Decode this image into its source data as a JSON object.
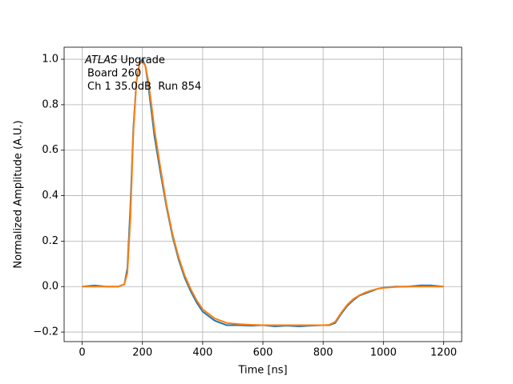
{
  "chart_data": {
    "type": "line",
    "xlabel": "Time [ns]",
    "ylabel": "Normalized Amplitude (A.U.)",
    "annotation_emph": "ATLAS",
    "annotation": [
      "Upgrade",
      "Board 260",
      "Ch 1 35.0dB  Run 854"
    ],
    "x": [
      0,
      40,
      80,
      120,
      140,
      150,
      160,
      170,
      180,
      190,
      200,
      210,
      220,
      230,
      240,
      260,
      280,
      300,
      320,
      340,
      360,
      380,
      400,
      440,
      480,
      520,
      560,
      600,
      640,
      680,
      720,
      760,
      800,
      820,
      840,
      860,
      880,
      900,
      920,
      940,
      960,
      980,
      1000,
      1040,
      1080,
      1120,
      1160,
      1200
    ],
    "series": [
      {
        "color": "#1f77b4",
        "values": [
          0.0,
          0.005,
          0.0,
          0.0,
          0.01,
          0.08,
          0.35,
          0.7,
          0.9,
          0.98,
          1.0,
          0.97,
          0.88,
          0.77,
          0.66,
          0.5,
          0.35,
          0.22,
          0.12,
          0.04,
          -0.02,
          -0.07,
          -0.11,
          -0.15,
          -0.17,
          -0.17,
          -0.172,
          -0.17,
          -0.175,
          -0.172,
          -0.175,
          -0.172,
          -0.17,
          -0.17,
          -0.16,
          -0.12,
          -0.085,
          -0.06,
          -0.04,
          -0.03,
          -0.02,
          -0.01,
          -0.005,
          0.0,
          0.0,
          0.005,
          0.005,
          0.0
        ]
      },
      {
        "color": "#ff7f0e",
        "values": [
          0.0,
          0.0,
          0.0,
          0.0,
          0.01,
          0.06,
          0.3,
          0.68,
          0.9,
          0.98,
          0.99,
          0.97,
          0.9,
          0.8,
          0.69,
          0.52,
          0.36,
          0.23,
          0.13,
          0.05,
          -0.01,
          -0.06,
          -0.1,
          -0.14,
          -0.16,
          -0.165,
          -0.168,
          -0.17,
          -0.17,
          -0.17,
          -0.17,
          -0.17,
          -0.17,
          -0.168,
          -0.155,
          -0.115,
          -0.08,
          -0.055,
          -0.038,
          -0.026,
          -0.017,
          -0.01,
          -0.006,
          -0.002,
          0.0,
          0.0,
          0.0,
          0.0
        ]
      }
    ],
    "xlim": [
      -60,
      1260
    ],
    "xticks": [
      0,
      200,
      400,
      600,
      800,
      1000,
      1200
    ],
    "ylim": [
      -0.242,
      1.053
    ],
    "yticks": [
      {
        "value": -0.2,
        "label": "−0.2"
      },
      {
        "value": 0.0,
        "label": "0.0"
      },
      0.2,
      0.4,
      0.6,
      0.8,
      {
        "value": 1.0,
        "label": "1.0"
      }
    ],
    "grid": true
  }
}
